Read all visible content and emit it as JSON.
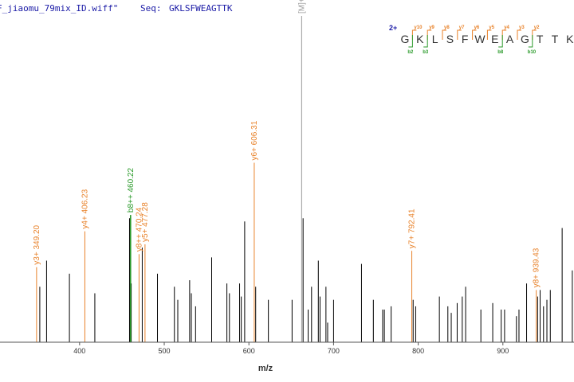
{
  "header": {
    "file": "F_jiaomu_79mix_ID.wiff\"",
    "seq_prefix": "Seq:",
    "seq_value": "GKLSFWEAGTTK"
  },
  "colors": {
    "y_ion": "#e8822a",
    "b_ion": "#2a9a2a",
    "precursor": "#999999",
    "other": "#000000",
    "charge": "#1a1aa6"
  },
  "sequence_panel": {
    "charge": "2+",
    "residues": [
      "G",
      "K",
      "L",
      "S",
      "F",
      "W",
      "E",
      "A",
      "G",
      "T",
      "T",
      "K"
    ],
    "y_marks": [
      {
        "after": 1,
        "label": "y10"
      },
      {
        "after": 2,
        "label": "y9"
      },
      {
        "after": 3,
        "label": "y8"
      },
      {
        "after": 4,
        "label": "y7"
      },
      {
        "after": 5,
        "label": "y6"
      },
      {
        "after": 6,
        "label": "y5"
      },
      {
        "after": 7,
        "label": "y4"
      },
      {
        "after": 8,
        "label": "y3"
      },
      {
        "after": 9,
        "label": "y2"
      }
    ],
    "b_marks": [
      {
        "after": 1,
        "label": "b2"
      },
      {
        "after": 2,
        "label": "b3"
      },
      {
        "after": 7,
        "label": "b8"
      },
      {
        "after": 9,
        "label": "b10"
      }
    ]
  },
  "chart_data": {
    "type": "bar",
    "xlabel": "m/z",
    "xlim": [
      306,
      984
    ],
    "ylim": [
      0,
      100
    ],
    "x_ticks": [
      400,
      500,
      600,
      700,
      800,
      900
    ],
    "labeled_peaks": [
      {
        "mz": 349.2,
        "intensity": 23,
        "label": "y3+ 349.20",
        "ion": "y"
      },
      {
        "mz": 406.23,
        "intensity": 34,
        "label": "y4+ 406.23",
        "ion": "y"
      },
      {
        "mz": 460.22,
        "intensity": 39,
        "label": "b8++ 460.22",
        "ion": "b"
      },
      {
        "mz": 470.24,
        "intensity": 27,
        "label": "y8++ 470.24",
        "ion": "y"
      },
      {
        "mz": 477.28,
        "intensity": 30,
        "label": "y5+ 477.28",
        "ion": "y"
      },
      {
        "mz": 606.31,
        "intensity": 55,
        "label": "y6+ 606.31",
        "ion": "y"
      },
      {
        "mz": 662.3,
        "intensity": 100,
        "label": "[M]++ 662.3",
        "ion": "precursor"
      },
      {
        "mz": 792.41,
        "intensity": 28,
        "label": "y7+ 792.41",
        "ion": "y"
      },
      {
        "mz": 939.43,
        "intensity": 16,
        "label": "y8+ 939.43",
        "ion": "y"
      }
    ],
    "peaks": [
      {
        "mz": 353,
        "intensity": 17
      },
      {
        "mz": 361,
        "intensity": 25
      },
      {
        "mz": 388,
        "intensity": 21
      },
      {
        "mz": 418,
        "intensity": 15
      },
      {
        "mz": 459,
        "intensity": 38
      },
      {
        "mz": 461,
        "intensity": 18
      },
      {
        "mz": 474,
        "intensity": 29
      },
      {
        "mz": 492,
        "intensity": 21
      },
      {
        "mz": 512,
        "intensity": 17
      },
      {
        "mz": 516,
        "intensity": 13
      },
      {
        "mz": 530,
        "intensity": 19
      },
      {
        "mz": 532,
        "intensity": 15
      },
      {
        "mz": 537,
        "intensity": 11
      },
      {
        "mz": 556,
        "intensity": 26
      },
      {
        "mz": 574,
        "intensity": 18
      },
      {
        "mz": 577,
        "intensity": 15
      },
      {
        "mz": 589,
        "intensity": 18
      },
      {
        "mz": 591,
        "intensity": 14
      },
      {
        "mz": 595,
        "intensity": 37
      },
      {
        "mz": 608,
        "intensity": 17
      },
      {
        "mz": 623,
        "intensity": 13
      },
      {
        "mz": 651,
        "intensity": 13
      },
      {
        "mz": 664,
        "intensity": 38
      },
      {
        "mz": 670,
        "intensity": 10
      },
      {
        "mz": 674,
        "intensity": 17
      },
      {
        "mz": 682,
        "intensity": 25
      },
      {
        "mz": 684,
        "intensity": 14
      },
      {
        "mz": 691,
        "intensity": 17
      },
      {
        "mz": 693,
        "intensity": 6
      },
      {
        "mz": 700,
        "intensity": 13
      },
      {
        "mz": 733,
        "intensity": 24
      },
      {
        "mz": 747,
        "intensity": 13
      },
      {
        "mz": 758,
        "intensity": 10
      },
      {
        "mz": 760,
        "intensity": 10
      },
      {
        "mz": 768,
        "intensity": 11
      },
      {
        "mz": 794,
        "intensity": 13
      },
      {
        "mz": 797,
        "intensity": 11
      },
      {
        "mz": 825,
        "intensity": 14
      },
      {
        "mz": 835,
        "intensity": 11
      },
      {
        "mz": 839,
        "intensity": 9
      },
      {
        "mz": 846,
        "intensity": 12
      },
      {
        "mz": 852,
        "intensity": 14
      },
      {
        "mz": 856,
        "intensity": 17
      },
      {
        "mz": 874,
        "intensity": 10
      },
      {
        "mz": 888,
        "intensity": 12
      },
      {
        "mz": 898,
        "intensity": 10
      },
      {
        "mz": 902,
        "intensity": 10
      },
      {
        "mz": 916,
        "intensity": 8
      },
      {
        "mz": 919,
        "intensity": 10
      },
      {
        "mz": 928,
        "intensity": 18
      },
      {
        "mz": 941,
        "intensity": 14
      },
      {
        "mz": 944,
        "intensity": 16
      },
      {
        "mz": 948,
        "intensity": 11
      },
      {
        "mz": 952,
        "intensity": 13
      },
      {
        "mz": 956,
        "intensity": 16
      },
      {
        "mz": 970,
        "intensity": 35
      },
      {
        "mz": 982,
        "intensity": 22
      }
    ]
  }
}
